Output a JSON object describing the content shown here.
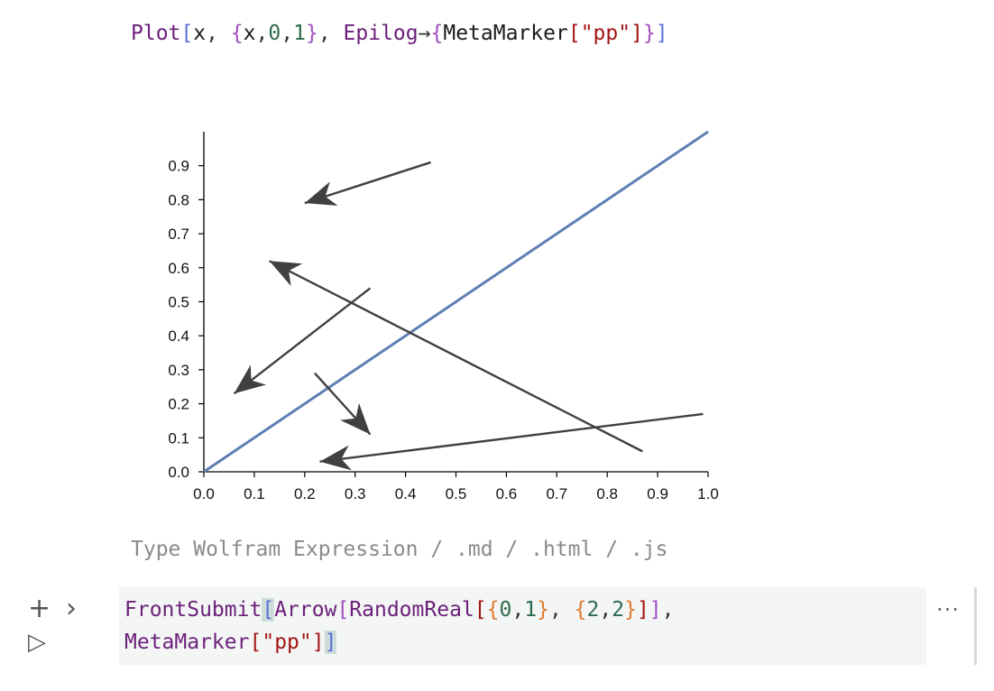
{
  "code_top": {
    "tokens": [
      {
        "t": "Plot",
        "c": "fn"
      },
      {
        "t": "[",
        "c": "br2"
      },
      {
        "t": "x",
        "c": "var"
      },
      {
        "t": ", ",
        "c": "pun"
      },
      {
        "t": "{",
        "c": "br1"
      },
      {
        "t": "x",
        "c": "var"
      },
      {
        "t": ",",
        "c": "pun"
      },
      {
        "t": "0",
        "c": "num"
      },
      {
        "t": ",",
        "c": "pun"
      },
      {
        "t": "1",
        "c": "num"
      },
      {
        "t": "}",
        "c": "br1"
      },
      {
        "t": ", ",
        "c": "pun"
      },
      {
        "t": "Epilog",
        "c": "fn"
      },
      {
        "t": "→",
        "c": "pun"
      },
      {
        "t": "{",
        "c": "br1"
      },
      {
        "t": "MetaMarker",
        "c": "var"
      },
      {
        "t": "[",
        "c": "str"
      },
      {
        "t": "\"pp\"",
        "c": "str"
      },
      {
        "t": "]",
        "c": "str"
      },
      {
        "t": "}",
        "c": "br1"
      },
      {
        "t": "]",
        "c": "br2"
      }
    ]
  },
  "chart_data": {
    "type": "line",
    "x": [
      0.0,
      1.0
    ],
    "series": [
      {
        "values": [
          0.0,
          1.0
        ],
        "color": "#5f7fb3"
      }
    ],
    "xlim": [
      0,
      1
    ],
    "ylim": [
      0,
      1
    ],
    "xticks": [
      "0.0",
      "0.1",
      "0.2",
      "0.3",
      "0.4",
      "0.5",
      "0.6",
      "0.7",
      "0.8",
      "0.9",
      "1.0"
    ],
    "yticks": [
      "0.0",
      "0.1",
      "0.2",
      "0.3",
      "0.4",
      "0.5",
      "0.6",
      "0.7",
      "0.8",
      "0.9"
    ],
    "grid": false,
    "epilog_arrows": [
      {
        "from": [
          0.45,
          0.91
        ],
        "to": [
          0.2,
          0.79
        ]
      },
      {
        "from": [
          0.87,
          0.06
        ],
        "to": [
          0.13,
          0.62
        ]
      },
      {
        "from": [
          0.33,
          0.54
        ],
        "to": [
          0.06,
          0.23
        ]
      },
      {
        "from": [
          0.22,
          0.29
        ],
        "to": [
          0.33,
          0.11
        ]
      },
      {
        "from": [
          0.99,
          0.17
        ],
        "to": [
          0.23,
          0.03
        ]
      }
    ],
    "arrow_color": "#404040"
  },
  "input_placeholder": "Type Wolfram Expression / .md / .html / .js",
  "editor": {
    "line1": [
      {
        "t": "FrontSubmit",
        "c": "fn"
      },
      {
        "t": "[",
        "c": "br2 hl"
      },
      {
        "t": "Arrow",
        "c": "fn"
      },
      {
        "t": "[",
        "c": "br1"
      },
      {
        "t": "RandomReal",
        "c": "fn"
      },
      {
        "t": "[",
        "c": "str"
      },
      {
        "t": "{",
        "c": "br3"
      },
      {
        "t": "0",
        "c": "num"
      },
      {
        "t": ",",
        "c": "pun"
      },
      {
        "t": "1",
        "c": "num"
      },
      {
        "t": "}",
        "c": "br3"
      },
      {
        "t": ", ",
        "c": "pun"
      },
      {
        "t": "{",
        "c": "br3"
      },
      {
        "t": "2",
        "c": "num"
      },
      {
        "t": ",",
        "c": "pun"
      },
      {
        "t": "2",
        "c": "num"
      },
      {
        "t": "}",
        "c": "br3"
      },
      {
        "t": "]",
        "c": "str"
      },
      {
        "t": "]",
        "c": "br1"
      },
      {
        "t": ",",
        "c": "pun"
      }
    ],
    "line2": [
      {
        "t": "MetaMarker",
        "c": "fn"
      },
      {
        "t": "[",
        "c": "str"
      },
      {
        "t": "\"pp\"",
        "c": "str"
      },
      {
        "t": "]",
        "c": "str"
      },
      {
        "t": "]",
        "c": "br2 hl"
      }
    ]
  },
  "controls": {
    "add_label": "+",
    "expand_label": "›",
    "run_label": "▷",
    "more_label": "···"
  },
  "icons": {
    "add": "plus-icon",
    "expand": "chevron-right-icon",
    "run": "play-icon",
    "more": "more-dots-icon"
  }
}
